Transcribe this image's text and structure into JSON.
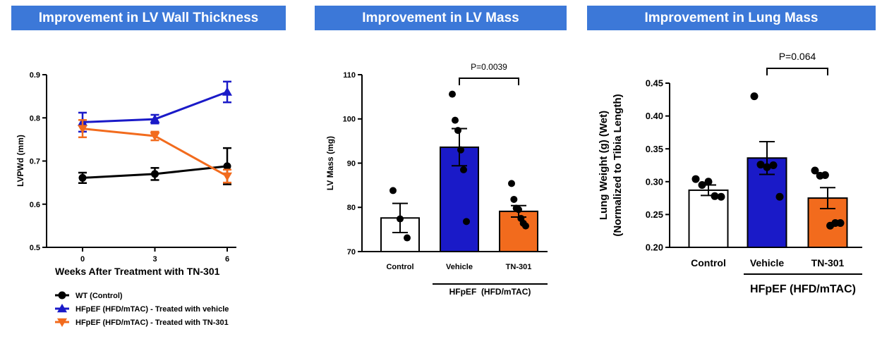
{
  "colors": {
    "banner": "#3c78d8",
    "wt": "#000000",
    "vehicle": "#1a1ac8",
    "tn301": "#f26b1d",
    "control_bar": "#ffffff"
  },
  "chart_data": [
    {
      "type": "line",
      "title": "Improvement in LV Wall Thickness",
      "xlabel": "Weeks After Treatment with TN-301",
      "ylabel": "LVPWd (mm)",
      "x": [
        0,
        3,
        6
      ],
      "xticks": [
        "0",
        "3",
        "6"
      ],
      "ylim": [
        0.5,
        0.9
      ],
      "yticks": [
        "0.5",
        "0.6",
        "0.7",
        "0.8",
        "0.9"
      ],
      "legend_position": "bottom-left",
      "series": [
        {
          "name": "WT (Control)",
          "marker": "circle",
          "color": "#000000",
          "values": [
            0.661,
            0.67,
            0.688
          ],
          "errors": [
            0.012,
            0.014,
            0.042
          ]
        },
        {
          "name": "HFpEF (HFD/mTAC) - Treated with vehicle",
          "marker": "triangle-up",
          "color": "#1a1ac8",
          "values": [
            0.79,
            0.797,
            0.86
          ],
          "errors": [
            0.022,
            0.01,
            0.024
          ]
        },
        {
          "name": "HFpEF (HFD/mTAC) - Treated with TN-301",
          "marker": "triangle-down",
          "color": "#f26b1d",
          "values": [
            0.775,
            0.758,
            0.665
          ],
          "errors": [
            0.02,
            0.01,
            0.015
          ]
        }
      ]
    },
    {
      "type": "bar",
      "title": "Improvement in LV Mass",
      "ylabel": "LV Mass (mg)",
      "ylim": [
        70,
        110
      ],
      "yticks": [
        "70",
        "80",
        "90",
        "100",
        "110"
      ],
      "categories": [
        "Control",
        "Vehicle",
        "TN-301"
      ],
      "values": [
        77.6,
        93.6,
        79.1
      ],
      "errors": [
        3.3,
        4.2,
        1.3
      ],
      "colors": [
        "#ffffff",
        "#1a1ac8",
        "#f26b1d"
      ],
      "points": [
        [
          83.8,
          77.4,
          73.1
        ],
        [
          105.6,
          99.7,
          97.4,
          93.0,
          88.5,
          76.8
        ],
        [
          85.4,
          81.8,
          79.8,
          79.5,
          77.5,
          76.4,
          75.8
        ]
      ],
      "group_label": "HFpEF  (HFD/mTAC)",
      "annotation": "P=0.0039"
    },
    {
      "type": "bar",
      "title": "Improvement in Lung Mass",
      "ylabel": "Lung Weight (g) (Wet)",
      "ylabel2": "(Normalized to Tibia Length)",
      "ylim": [
        0.2,
        0.45
      ],
      "yticks": [
        "0.20",
        "0.25",
        "0.30",
        "0.35",
        "0.40",
        "0.45"
      ],
      "categories": [
        "Control",
        "Vehicle",
        "TN-301"
      ],
      "values": [
        0.287,
        0.336,
        0.275
      ],
      "errors": [
        0.008,
        0.025,
        0.016
      ],
      "colors": [
        "#ffffff",
        "#1a1ac8",
        "#f26b1d"
      ],
      "points": [
        [
          0.304,
          0.295,
          0.3,
          0.278,
          0.277
        ],
        [
          0.43,
          0.326,
          0.322,
          0.325,
          0.277
        ],
        [
          0.317,
          0.309,
          0.31,
          0.233,
          0.237,
          0.237
        ]
      ],
      "group_label": "HFpEF (HFD/mTAC)",
      "annotation": "P=0.064"
    }
  ]
}
